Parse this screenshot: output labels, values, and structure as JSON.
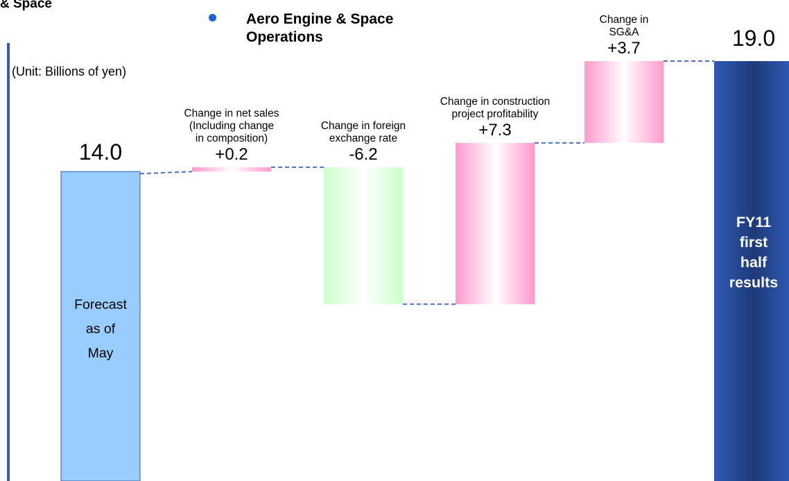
{
  "header": {
    "segment_fragment": "& Space",
    "subtitle_line1": "Aero Engine & Space",
    "subtitle_line2": "Operations",
    "unit": "(Unit: Billions of yen)"
  },
  "colors": {
    "start_bar": "#99ccff",
    "end_bar": "#2f5bb7",
    "increase": "#ff99cc",
    "decrease": "#ccffcc",
    "connector": "#4a6fd0",
    "axis_rule": "#2f5bb7"
  },
  "chart_data": {
    "type": "bar",
    "subtype": "waterfall",
    "unit": "Billions of yen",
    "ylim": [
      0,
      19.0
    ],
    "grid": false,
    "steps": [
      {
        "kind": "total",
        "label_lines": [
          "Forecast",
          "as of",
          "May"
        ],
        "value": 14.0,
        "value_text": "14.0"
      },
      {
        "kind": "delta",
        "label_lines": [
          "Change in net sales",
          "(Including change",
          "in composition)"
        ],
        "value": 0.2,
        "value_text": "+0.2"
      },
      {
        "kind": "delta",
        "label_lines": [
          "Change in foreign",
          "exchange rate"
        ],
        "value": -6.2,
        "value_text": "-6.2"
      },
      {
        "kind": "delta",
        "label_lines": [
          "Change in construction",
          "project profitability"
        ],
        "value": 7.3,
        "value_text": "+7.3"
      },
      {
        "kind": "delta",
        "label_lines": [
          "Change in",
          "SG&A"
        ],
        "value": 3.7,
        "value_text": "+3.7"
      },
      {
        "kind": "total",
        "label_lines": [
          "FY11",
          "first",
          "half",
          "results"
        ],
        "value": 19.0,
        "value_text": "19.0"
      }
    ]
  }
}
